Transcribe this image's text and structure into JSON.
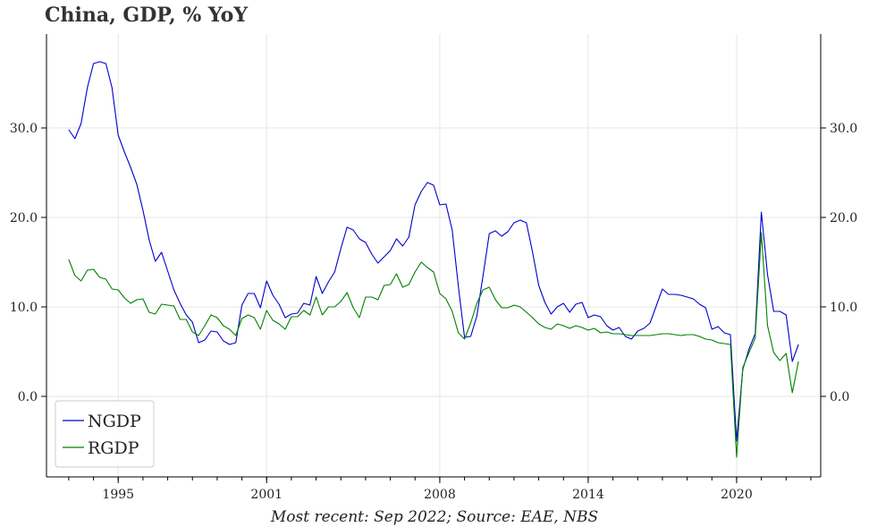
{
  "title": "China, GDP, % YoY",
  "footnote": "Most recent: Sep 2022; Source: EAE, NBS",
  "colors": {
    "NGDP": "#0000cc",
    "RGDP": "#008000",
    "grid": "#e6e6e6",
    "axis": "#000000"
  },
  "chart_data": {
    "type": "line",
    "title": "China, GDP, % YoY",
    "xlabel": "Most recent: Sep 2022; Source: EAE, NBS",
    "ylabel": "",
    "xlim": [
      1992.1,
      2023.4
    ],
    "ylim": [
      -9.0,
      40.5
    ],
    "grid": true,
    "legend_position": "bottom-left",
    "x_ticks": [
      {
        "value": 1995,
        "label": "1995"
      },
      {
        "value": 2001,
        "label": "2001"
      },
      {
        "value": 2008,
        "label": "2008"
      },
      {
        "value": 2014,
        "label": "2014"
      },
      {
        "value": 2020,
        "label": "2020"
      }
    ],
    "y_ticks": [
      {
        "value": 0,
        "label": "0.0"
      },
      {
        "value": 10,
        "label": "10.0"
      },
      {
        "value": 20,
        "label": "20.0"
      },
      {
        "value": 30,
        "label": "30.0"
      }
    ],
    "series": [
      {
        "name": "NGDP",
        "points": [
          [
            1993.0,
            29.8
          ],
          [
            1993.25,
            28.8
          ],
          [
            1993.5,
            30.5
          ],
          [
            1993.75,
            34.5
          ],
          [
            1994.0,
            37.2
          ],
          [
            1994.25,
            37.4
          ],
          [
            1994.5,
            37.2
          ],
          [
            1994.75,
            34.5
          ],
          [
            1995.0,
            29.2
          ],
          [
            1995.25,
            27.3
          ],
          [
            1995.5,
            25.6
          ],
          [
            1995.75,
            23.7
          ],
          [
            1996.0,
            20.8
          ],
          [
            1996.25,
            17.5
          ],
          [
            1996.5,
            15.1
          ],
          [
            1996.75,
            16.1
          ],
          [
            1997.0,
            14.0
          ],
          [
            1997.25,
            11.9
          ],
          [
            1997.5,
            10.4
          ],
          [
            1997.75,
            9.1
          ],
          [
            1998.0,
            8.3
          ],
          [
            1998.25,
            6.0
          ],
          [
            1998.5,
            6.3
          ],
          [
            1998.75,
            7.3
          ],
          [
            1999.0,
            7.2
          ],
          [
            1999.25,
            6.2
          ],
          [
            1999.5,
            5.8
          ],
          [
            1999.75,
            6.0
          ],
          [
            2000.0,
            10.2
          ],
          [
            2000.25,
            11.5
          ],
          [
            2000.5,
            11.5
          ],
          [
            2000.75,
            9.9
          ],
          [
            2001.0,
            12.9
          ],
          [
            2001.25,
            11.3
          ],
          [
            2001.5,
            10.3
          ],
          [
            2001.75,
            8.8
          ],
          [
            2002.0,
            9.2
          ],
          [
            2002.25,
            9.3
          ],
          [
            2002.5,
            10.4
          ],
          [
            2002.75,
            10.2
          ],
          [
            2003.0,
            13.4
          ],
          [
            2003.25,
            11.5
          ],
          [
            2003.5,
            12.8
          ],
          [
            2003.75,
            13.9
          ],
          [
            2004.0,
            16.5
          ],
          [
            2004.25,
            18.9
          ],
          [
            2004.5,
            18.6
          ],
          [
            2004.75,
            17.6
          ],
          [
            2005.0,
            17.2
          ],
          [
            2005.25,
            15.9
          ],
          [
            2005.5,
            14.9
          ],
          [
            2005.75,
            15.6
          ],
          [
            2006.0,
            16.3
          ],
          [
            2006.25,
            17.6
          ],
          [
            2006.5,
            16.8
          ],
          [
            2006.75,
            17.8
          ],
          [
            2007.0,
            21.4
          ],
          [
            2007.25,
            22.9
          ],
          [
            2007.5,
            23.9
          ],
          [
            2007.75,
            23.6
          ],
          [
            2008.0,
            21.4
          ],
          [
            2008.25,
            21.5
          ],
          [
            2008.5,
            18.6
          ],
          [
            2008.75,
            12.3
          ],
          [
            2009.0,
            6.6
          ],
          [
            2009.25,
            6.7
          ],
          [
            2009.5,
            9.0
          ],
          [
            2009.75,
            13.5
          ],
          [
            2010.0,
            18.2
          ],
          [
            2010.25,
            18.5
          ],
          [
            2010.5,
            17.9
          ],
          [
            2010.75,
            18.4
          ],
          [
            2011.0,
            19.4
          ],
          [
            2011.25,
            19.7
          ],
          [
            2011.5,
            19.4
          ],
          [
            2011.75,
            16.1
          ],
          [
            2012.0,
            12.4
          ],
          [
            2012.25,
            10.5
          ],
          [
            2012.5,
            9.2
          ],
          [
            2012.75,
            10.0
          ],
          [
            2013.0,
            10.4
          ],
          [
            2013.25,
            9.4
          ],
          [
            2013.5,
            10.3
          ],
          [
            2013.75,
            10.5
          ],
          [
            2014.0,
            8.8
          ],
          [
            2014.25,
            9.1
          ],
          [
            2014.5,
            8.9
          ],
          [
            2014.75,
            7.9
          ],
          [
            2015.0,
            7.4
          ],
          [
            2015.25,
            7.7
          ],
          [
            2015.5,
            6.7
          ],
          [
            2015.75,
            6.4
          ],
          [
            2016.0,
            7.3
          ],
          [
            2016.25,
            7.6
          ],
          [
            2016.5,
            8.2
          ],
          [
            2016.75,
            10.1
          ],
          [
            2017.0,
            12.0
          ],
          [
            2017.25,
            11.4
          ],
          [
            2017.5,
            11.4
          ],
          [
            2017.75,
            11.3
          ],
          [
            2018.0,
            11.1
          ],
          [
            2018.25,
            10.9
          ],
          [
            2018.5,
            10.3
          ],
          [
            2018.75,
            9.9
          ],
          [
            2019.0,
            7.5
          ],
          [
            2019.25,
            7.8
          ],
          [
            2019.5,
            7.1
          ],
          [
            2019.75,
            6.9
          ],
          [
            2020.0,
            -5.0
          ],
          [
            2020.25,
            3.0
          ],
          [
            2020.5,
            5.3
          ],
          [
            2020.75,
            7.0
          ],
          [
            2021.0,
            20.6
          ],
          [
            2021.25,
            13.6
          ],
          [
            2021.5,
            9.5
          ],
          [
            2021.75,
            9.5
          ],
          [
            2022.0,
            9.1
          ],
          [
            2022.25,
            3.9
          ],
          [
            2022.5,
            5.8
          ]
        ]
      },
      {
        "name": "RGDP",
        "points": [
          [
            1993.0,
            15.3
          ],
          [
            1993.25,
            13.5
          ],
          [
            1993.5,
            12.9
          ],
          [
            1993.75,
            14.1
          ],
          [
            1994.0,
            14.2
          ],
          [
            1994.25,
            13.3
          ],
          [
            1994.5,
            13.1
          ],
          [
            1994.75,
            12.0
          ],
          [
            1995.0,
            11.9
          ],
          [
            1995.25,
            11.0
          ],
          [
            1995.5,
            10.4
          ],
          [
            1995.75,
            10.8
          ],
          [
            1996.0,
            10.9
          ],
          [
            1996.25,
            9.4
          ],
          [
            1996.5,
            9.2
          ],
          [
            1996.75,
            10.3
          ],
          [
            1997.0,
            10.2
          ],
          [
            1997.25,
            10.1
          ],
          [
            1997.5,
            8.6
          ],
          [
            1997.75,
            8.6
          ],
          [
            1998.0,
            7.2
          ],
          [
            1998.25,
            6.8
          ],
          [
            1998.5,
            7.9
          ],
          [
            1998.75,
            9.1
          ],
          [
            1999.0,
            8.8
          ],
          [
            1999.25,
            7.9
          ],
          [
            1999.5,
            7.5
          ],
          [
            1999.75,
            6.8
          ],
          [
            2000.0,
            8.7
          ],
          [
            2000.25,
            9.1
          ],
          [
            2000.5,
            8.8
          ],
          [
            2000.75,
            7.5
          ],
          [
            2001.0,
            9.6
          ],
          [
            2001.25,
            8.5
          ],
          [
            2001.5,
            8.1
          ],
          [
            2001.75,
            7.5
          ],
          [
            2002.0,
            8.9
          ],
          [
            2002.25,
            8.9
          ],
          [
            2002.5,
            9.6
          ],
          [
            2002.75,
            9.1
          ],
          [
            2003.0,
            11.1
          ],
          [
            2003.25,
            9.1
          ],
          [
            2003.5,
            10.0
          ],
          [
            2003.75,
            10.0
          ],
          [
            2004.0,
            10.6
          ],
          [
            2004.25,
            11.6
          ],
          [
            2004.5,
            9.9
          ],
          [
            2004.75,
            8.8
          ],
          [
            2005.0,
            11.1
          ],
          [
            2005.25,
            11.1
          ],
          [
            2005.5,
            10.8
          ],
          [
            2005.75,
            12.4
          ],
          [
            2006.0,
            12.5
          ],
          [
            2006.25,
            13.7
          ],
          [
            2006.5,
            12.2
          ],
          [
            2006.75,
            12.5
          ],
          [
            2007.0,
            13.9
          ],
          [
            2007.25,
            15.0
          ],
          [
            2007.5,
            14.4
          ],
          [
            2007.75,
            13.9
          ],
          [
            2008.0,
            11.5
          ],
          [
            2008.25,
            10.9
          ],
          [
            2008.5,
            9.5
          ],
          [
            2008.75,
            7.1
          ],
          [
            2009.0,
            6.4
          ],
          [
            2009.25,
            8.2
          ],
          [
            2009.5,
            10.4
          ],
          [
            2009.75,
            11.9
          ],
          [
            2010.0,
            12.2
          ],
          [
            2010.25,
            10.8
          ],
          [
            2010.5,
            9.9
          ],
          [
            2010.75,
            9.9
          ],
          [
            2011.0,
            10.2
          ],
          [
            2011.25,
            10.0
          ],
          [
            2011.5,
            9.4
          ],
          [
            2011.75,
            8.8
          ],
          [
            2012.0,
            8.1
          ],
          [
            2012.25,
            7.7
          ],
          [
            2012.5,
            7.5
          ],
          [
            2012.75,
            8.1
          ],
          [
            2013.0,
            7.9
          ],
          [
            2013.25,
            7.6
          ],
          [
            2013.5,
            7.9
          ],
          [
            2013.75,
            7.7
          ],
          [
            2014.0,
            7.4
          ],
          [
            2014.25,
            7.6
          ],
          [
            2014.5,
            7.1
          ],
          [
            2014.75,
            7.2
          ],
          [
            2015.0,
            7.0
          ],
          [
            2015.25,
            7.0
          ],
          [
            2015.5,
            6.9
          ],
          [
            2015.75,
            6.8
          ],
          [
            2016.0,
            6.8
          ],
          [
            2016.25,
            6.8
          ],
          [
            2016.5,
            6.8
          ],
          [
            2016.75,
            6.9
          ],
          [
            2017.0,
            7.0
          ],
          [
            2017.25,
            7.0
          ],
          [
            2017.5,
            6.9
          ],
          [
            2017.75,
            6.8
          ],
          [
            2018.0,
            6.9
          ],
          [
            2018.25,
            6.9
          ],
          [
            2018.5,
            6.7
          ],
          [
            2018.75,
            6.4
          ],
          [
            2019.0,
            6.3
          ],
          [
            2019.25,
            6.0
          ],
          [
            2019.5,
            5.9
          ],
          [
            2019.75,
            5.8
          ],
          [
            2020.0,
            -6.8
          ],
          [
            2020.25,
            3.2
          ],
          [
            2020.5,
            4.9
          ],
          [
            2020.75,
            6.5
          ],
          [
            2021.0,
            18.3
          ],
          [
            2021.25,
            7.9
          ],
          [
            2021.5,
            4.9
          ],
          [
            2021.75,
            4.0
          ],
          [
            2022.0,
            4.8
          ],
          [
            2022.25,
            0.4
          ],
          [
            2022.5,
            3.9
          ]
        ]
      }
    ]
  }
}
